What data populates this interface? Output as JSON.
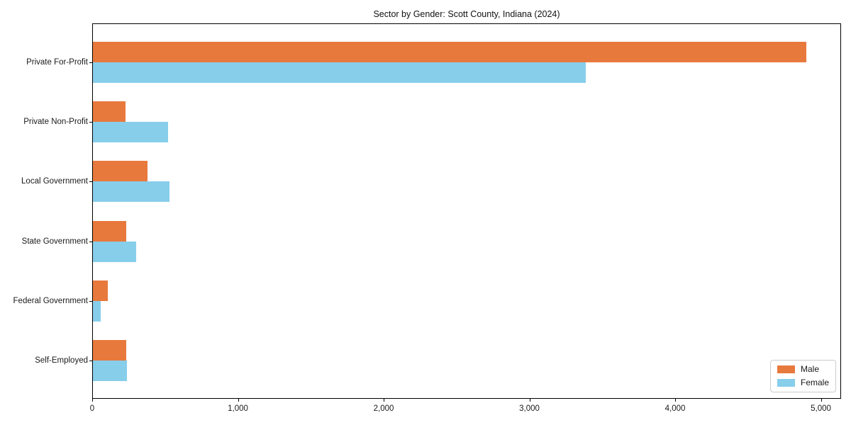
{
  "title": "Sector by Gender: Scott County, Indiana (2024)",
  "chart_data": {
    "type": "bar",
    "orientation": "horizontal",
    "title": "Sector by Gender: Scott County, Indiana (2024)",
    "categories": [
      "Private For-Profit",
      "Private Non-Profit",
      "Local Government",
      "State Government",
      "Federal Government",
      "Self-Employed"
    ],
    "series": [
      {
        "name": "Male",
        "color": "#E8793D",
        "values": [
          4895,
          225,
          375,
          230,
          100,
          230
        ]
      },
      {
        "name": "Female",
        "color": "#87CEEB",
        "values": [
          3380,
          515,
          525,
          295,
          55,
          235
        ]
      }
    ],
    "xlabel": "",
    "ylabel": "",
    "xlim": [
      0,
      5000
    ],
    "xticks": [
      0,
      1000,
      2000,
      3000,
      4000,
      5000
    ],
    "xtick_labels": [
      "0",
      "1,000",
      "2,000",
      "3,000",
      "4,000",
      "5,000"
    ],
    "legend": {
      "position": "lower-right",
      "entries": [
        "Male",
        "Female"
      ]
    },
    "grid": false,
    "axis_color": "#000000",
    "background_color": "#ffffff"
  }
}
